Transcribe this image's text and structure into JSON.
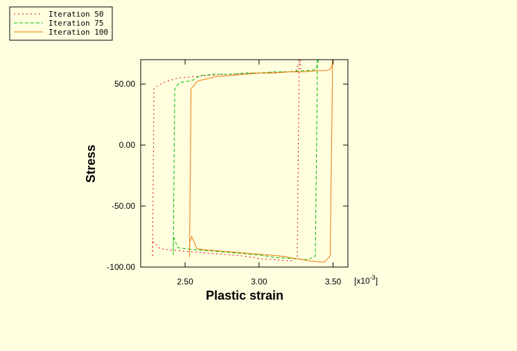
{
  "chart_data": {
    "type": "line",
    "xlabel": "Plastic strain",
    "ylabel": "Stress",
    "x_multiplier_base": "[x10",
    "x_multiplier_exp": "-3",
    "x_multiplier_close": "]",
    "xlim": [
      2.2,
      3.6
    ],
    "ylim": [
      -100,
      70
    ],
    "xticks": [
      2.5,
      3.0,
      3.5
    ],
    "xtick_labels": [
      "2.50",
      "3.00",
      "3.50"
    ],
    "yticks": [
      -100,
      -50,
      0,
      50
    ],
    "ytick_labels": [
      "-100.00",
      "-50.00",
      "0.00",
      "50.00"
    ],
    "grid": false,
    "legend_placement": "top-left",
    "series": [
      {
        "name": "Iteration 50",
        "color": "#dd0000",
        "dash": "dotted",
        "x": [
          3.27,
          3.27,
          3.258,
          3.21,
          3.1,
          3.0,
          2.9,
          2.8,
          2.7,
          2.6,
          2.5,
          2.4,
          2.33,
          2.29,
          2.28,
          2.28,
          2.29,
          2.32,
          2.37,
          2.45,
          2.55,
          2.65,
          2.75,
          2.85,
          2.95,
          3.05,
          3.15,
          3.22,
          3.25,
          3.265,
          3.28,
          3.28
        ],
        "y": [
          70,
          57,
          -92,
          -95,
          -94,
          -93,
          -91,
          -90,
          -89,
          -88,
          -87,
          -86,
          -85,
          -80,
          -78,
          -92,
          46,
          49,
          52,
          55,
          56,
          57,
          58,
          58,
          59,
          59,
          60,
          60,
          61,
          66,
          70,
          62
        ]
      },
      {
        "name": "Iteration 75",
        "color": "#00bb00",
        "dash": "dashed",
        "x": [
          3.393,
          3.393,
          3.38,
          3.33,
          3.22,
          3.1,
          3.0,
          2.9,
          2.8,
          2.7,
          2.6,
          2.5,
          2.45,
          2.425,
          2.42,
          2.42,
          2.43,
          2.46,
          2.5,
          2.55,
          2.6,
          2.7,
          2.8,
          2.9,
          3.0,
          3.1,
          3.2,
          3.3,
          3.35,
          3.38,
          3.395,
          3.4
        ],
        "y": [
          70,
          52,
          -91,
          -94,
          -93,
          -92,
          -90,
          -89,
          -88,
          -87,
          -86,
          -85,
          -84,
          -76,
          -80,
          -90,
          46,
          51,
          52,
          53,
          57,
          58,
          58,
          59,
          59,
          60,
          60,
          61,
          61,
          62,
          66,
          70
        ]
      },
      {
        "name": "Iteration 100",
        "color": "#ee7700",
        "dash": "solid",
        "x": [
          3.495,
          3.495,
          3.48,
          3.44,
          3.35,
          3.25,
          3.15,
          3.05,
          2.95,
          2.85,
          2.75,
          2.65,
          2.58,
          2.545,
          2.53,
          2.53,
          2.54,
          2.58,
          2.6,
          2.64,
          2.7,
          2.8,
          2.9,
          3.0,
          3.1,
          3.2,
          3.3,
          3.4,
          3.45,
          3.48,
          3.495,
          3.5
        ],
        "y": [
          70,
          50,
          -91,
          -96,
          -95,
          -93,
          -91,
          -90,
          -89,
          -88,
          -87,
          -86,
          -85,
          -75,
          -80,
          -92,
          46,
          52,
          53,
          54,
          56,
          57,
          58,
          59,
          59,
          60,
          60,
          61,
          61,
          62,
          66,
          70
        ]
      }
    ]
  }
}
